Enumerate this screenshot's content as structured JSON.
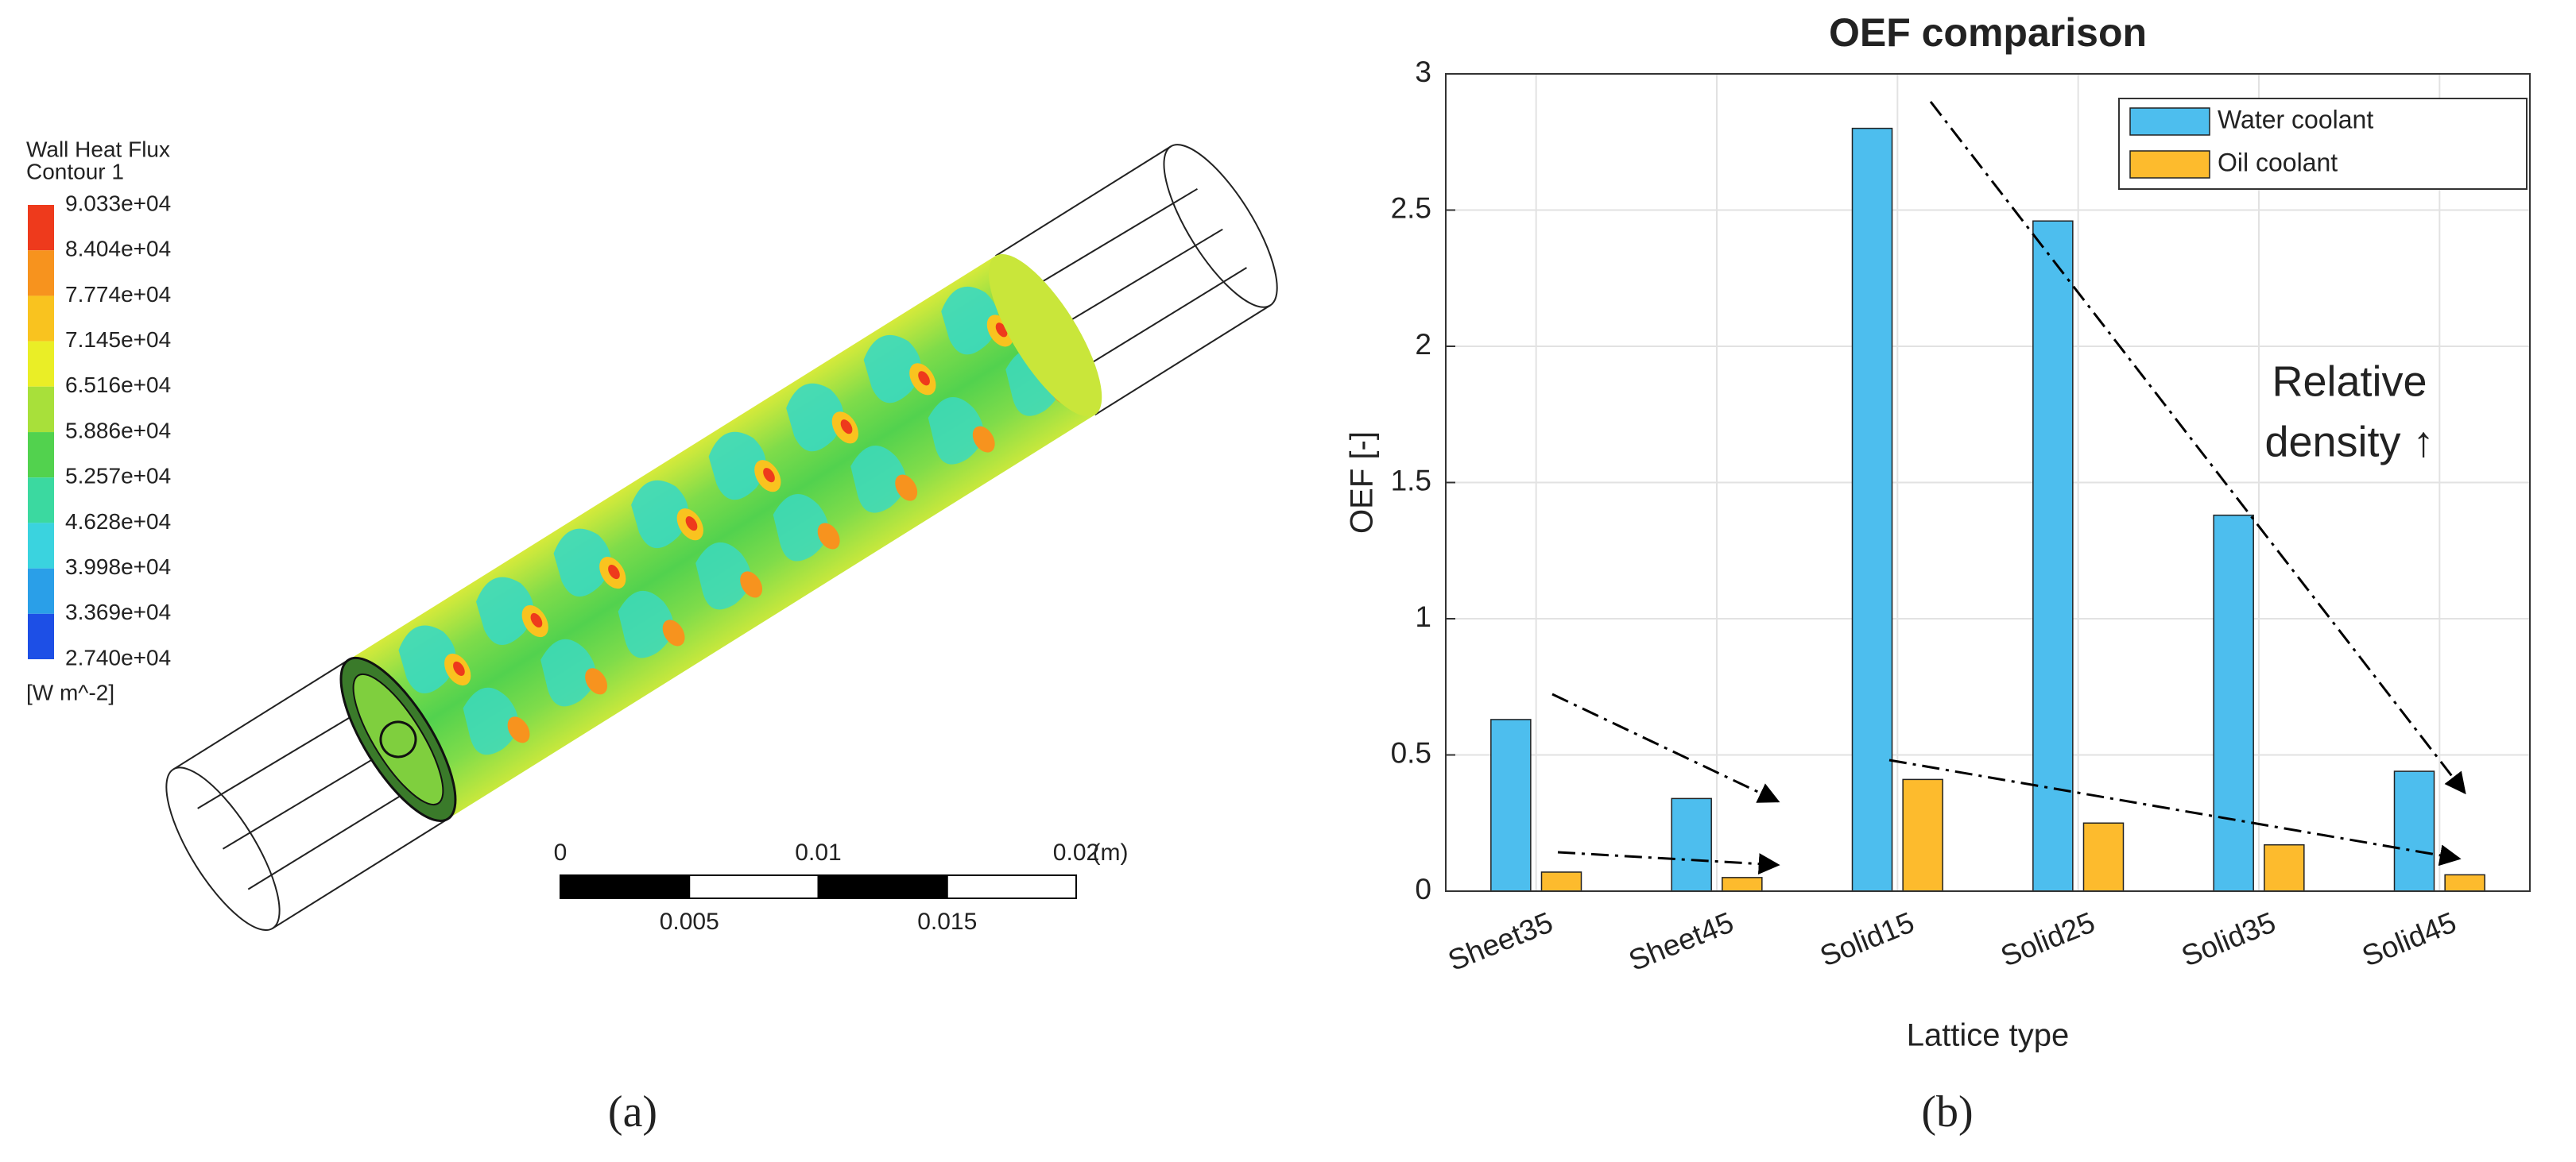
{
  "chart_data": [
    {
      "type": "contour",
      "label": "(a)",
      "colorbar_title": "Wall Heat Flux",
      "colorbar_subtitle": "Contour 1",
      "colorbar_unit": "[W m^-2]",
      "colorbar_lim": [
        27400,
        90330
      ],
      "colorbar_ticks": [
        {
          "value": 90330,
          "label": "9.033e+04"
        },
        {
          "value": 84040,
          "label": "8.404e+04"
        },
        {
          "value": 77740,
          "label": "7.774e+04"
        },
        {
          "value": 71450,
          "label": "7.145e+04"
        },
        {
          "value": 65160,
          "label": "6.516e+04"
        },
        {
          "value": 58860,
          "label": "5.886e+04"
        },
        {
          "value": 52570,
          "label": "5.257e+04"
        },
        {
          "value": 46280,
          "label": "4.628e+04"
        },
        {
          "value": 39980,
          "label": "3.998e+04"
        },
        {
          "value": 33690,
          "label": "3.369e+04"
        },
        {
          "value": 27400,
          "label": "2.740e+04"
        }
      ],
      "colors": [
        "#ee3a1c",
        "#f7931e",
        "#f9c31f",
        "#eaee26",
        "#a8e03a",
        "#52d24e",
        "#3bd9a0",
        "#3ad3df",
        "#2a9fe8",
        "#1d4fe6"
      ],
      "xlim": [
        0,
        0.02
      ],
      "xticks": [
        0,
        0.005,
        0.01,
        0.015,
        0.02
      ],
      "x_unit": "(m)"
    },
    {
      "type": "bar",
      "label": "(b)",
      "title": "OEF comparison",
      "x_label": "Lattice type",
      "y_label": "OEF [-]",
      "categories": [
        "Sheet35",
        "Sheet45",
        "Solid15",
        "Solid25",
        "Solid35",
        "Solid45"
      ],
      "series": [
        {
          "name": "Water coolant",
          "color": "#4dbeee",
          "values": [
            0.63,
            0.34,
            2.8,
            2.46,
            1.38,
            0.44
          ]
        },
        {
          "name": "Oil coolant",
          "color": "#fdbb2d",
          "values": [
            0.07,
            0.05,
            0.41,
            0.25,
            0.17,
            0.06
          ]
        }
      ],
      "ylim": [
        0,
        3
      ],
      "yticks": [
        0,
        0.5,
        1,
        1.5,
        2,
        2.5,
        3
      ],
      "grid": true,
      "legend": "upper right",
      "annotation": [
        "Relative",
        "density ↑"
      ]
    }
  ]
}
